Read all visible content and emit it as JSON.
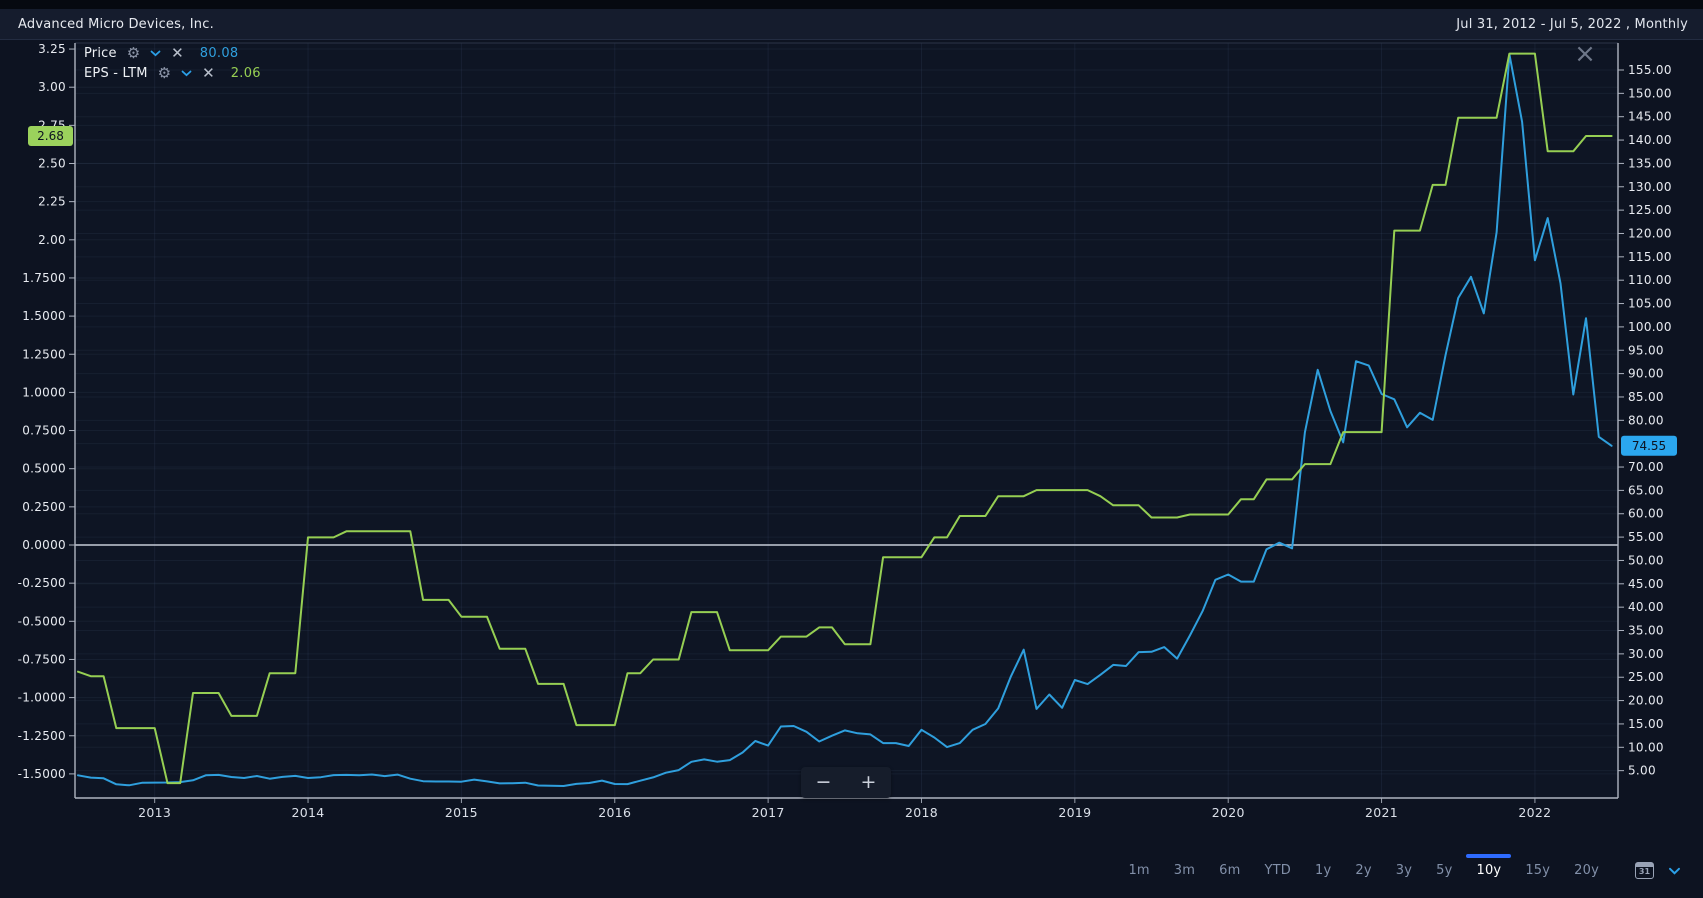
{
  "header": {
    "title": "Advanced Micro Devices, Inc.",
    "date_range": "Jul 31, 2012 - Jul 5, 2022 , Monthly"
  },
  "legend": {
    "items": [
      {
        "label": "Price",
        "value": "80.08",
        "color": "#2f9fdd",
        "icons": [
          "gear-icon",
          "chevron-down-icon",
          "close-icon"
        ]
      },
      {
        "label": "EPS - LTM",
        "value": "2.06",
        "color": "#96cf53",
        "icons": [
          "gear-icon",
          "chevron-down-icon",
          "close-icon"
        ]
      }
    ]
  },
  "badges": {
    "eps_last": "2.68",
    "price_last": "74.55",
    "eps_badge_color": "#9bd25c",
    "price_badge_color": "#2ba7ef"
  },
  "chart_data": {
    "type": "line",
    "frequency": "Monthly",
    "x_start": "2012-07",
    "x_end": "2022-07",
    "x_tick_labels": [
      "2013",
      "2014",
      "2015",
      "2016",
      "2017",
      "2018",
      "2019",
      "2020",
      "2021",
      "2022"
    ],
    "left_axis_ticks": [
      "3.25",
      "3.00",
      "2.75",
      "2.50",
      "2.25",
      "2.00",
      "1.7500",
      "1.5000",
      "1.2500",
      "1.0000",
      "0.7500",
      "0.5000",
      "0.2500",
      "0.0000",
      "-0.2500",
      "-0.5000",
      "-0.7500",
      "-1.0000",
      "-1.2500",
      "-1.5000"
    ],
    "right_axis_ticks": [
      "155.00",
      "150.00",
      "145.00",
      "140.00",
      "135.00",
      "130.00",
      "125.00",
      "120.00",
      "115.00",
      "110.00",
      "105.00",
      "100.00",
      "95.00",
      "90.00",
      "85.00",
      "80.00",
      "70.00",
      "65.00",
      "60.00",
      "55.00",
      "50.00",
      "45.00",
      "40.00",
      "35.00",
      "30.00",
      "25.00",
      "20.00",
      "15.00",
      "10.00",
      "5.00"
    ],
    "zero_line_value": 0,
    "grid": true,
    "legend_position": "top-left",
    "series": [
      {
        "name": "Price",
        "axis": "right",
        "color": "#2f9fdd",
        "values": [
          4.0,
          3.51,
          3.37,
          2.07,
          1.86,
          2.4,
          2.45,
          2.46,
          2.55,
          2.93,
          4.0,
          4.08,
          3.65,
          3.43,
          3.86,
          3.28,
          3.66,
          3.87,
          3.42,
          3.59,
          4.04,
          4.09,
          4.02,
          4.18,
          3.84,
          4.15,
          3.28,
          2.73,
          2.67,
          2.67,
          2.64,
          3.09,
          2.69,
          2.28,
          2.31,
          2.42,
          1.83,
          1.78,
          1.72,
          2.16,
          2.36,
          2.87,
          2.15,
          2.12,
          2.85,
          3.56,
          4.57,
          5.12,
          6.9,
          7.4,
          6.91,
          7.26,
          8.89,
          11.34,
          10.37,
          14.46,
          14.55,
          13.31,
          11.25,
          12.48,
          13.62,
          13.0,
          12.75,
          10.89,
          10.89,
          10.28,
          13.74,
          12.1,
          10.05,
          10.89,
          13.74,
          14.99,
          18.33,
          25.17,
          30.89,
          18.21,
          21.3,
          18.46,
          24.41,
          23.53,
          25.52,
          27.63,
          27.41,
          30.37,
          30.45,
          31.45,
          28.99,
          33.93,
          39.15,
          45.86,
          47.0,
          45.48,
          45.48,
          52.39,
          53.8,
          52.61,
          77.43,
          90.82,
          81.99,
          75.29,
          92.66,
          91.71,
          85.64,
          84.51,
          78.5,
          81.62,
          80.08,
          93.93,
          106.19,
          110.72,
          102.9,
          120.23,
          158.37,
          143.9,
          114.25,
          123.29,
          109.34,
          85.52,
          101.86,
          76.47,
          74.55
        ]
      },
      {
        "name": "EPS - LTM",
        "axis": "left",
        "color": "#96cf53",
        "values": [
          -0.83,
          -0.86,
          -0.86,
          -1.2,
          -1.2,
          -1.2,
          -1.2,
          -1.56,
          -1.56,
          -0.97,
          -0.97,
          -0.97,
          -1.12,
          -1.12,
          -1.12,
          -0.84,
          -0.84,
          -0.84,
          0.05,
          0.05,
          0.05,
          0.09,
          0.09,
          0.09,
          0.09,
          0.09,
          0.09,
          -0.36,
          -0.36,
          -0.36,
          -0.47,
          -0.47,
          -0.47,
          -0.68,
          -0.68,
          -0.68,
          -0.91,
          -0.91,
          -0.91,
          -1.18,
          -1.18,
          -1.18,
          -1.18,
          -0.84,
          -0.84,
          -0.75,
          -0.75,
          -0.75,
          -0.44,
          -0.44,
          -0.44,
          -0.69,
          -0.69,
          -0.69,
          -0.69,
          -0.6,
          -0.6,
          -0.6,
          -0.54,
          -0.54,
          -0.65,
          -0.65,
          -0.65,
          -0.08,
          -0.08,
          -0.08,
          -0.08,
          0.05,
          0.05,
          0.19,
          0.19,
          0.19,
          0.32,
          0.32,
          0.32,
          0.36,
          0.36,
          0.36,
          0.36,
          0.36,
          0.32,
          0.26,
          0.26,
          0.26,
          0.18,
          0.18,
          0.18,
          0.2,
          0.2,
          0.2,
          0.2,
          0.3,
          0.3,
          0.43,
          0.43,
          0.43,
          0.53,
          0.53,
          0.53,
          0.74,
          0.74,
          0.74,
          0.74,
          2.06,
          2.06,
          2.06,
          2.36,
          2.36,
          2.8,
          2.8,
          2.8,
          2.8,
          3.22,
          3.22,
          3.22,
          2.58,
          2.58,
          2.58,
          2.68,
          2.68,
          2.68
        ]
      }
    ]
  },
  "toolbar": {
    "ranges": [
      "1m",
      "3m",
      "6m",
      "YTD",
      "1y",
      "2y",
      "3y",
      "5y",
      "10y",
      "15y",
      "20y"
    ],
    "active": "10y",
    "accent": "#2e6bff",
    "calendar_label": "31"
  },
  "zoom_control": {
    "minus": "−",
    "plus": "+"
  },
  "close_button": "×"
}
